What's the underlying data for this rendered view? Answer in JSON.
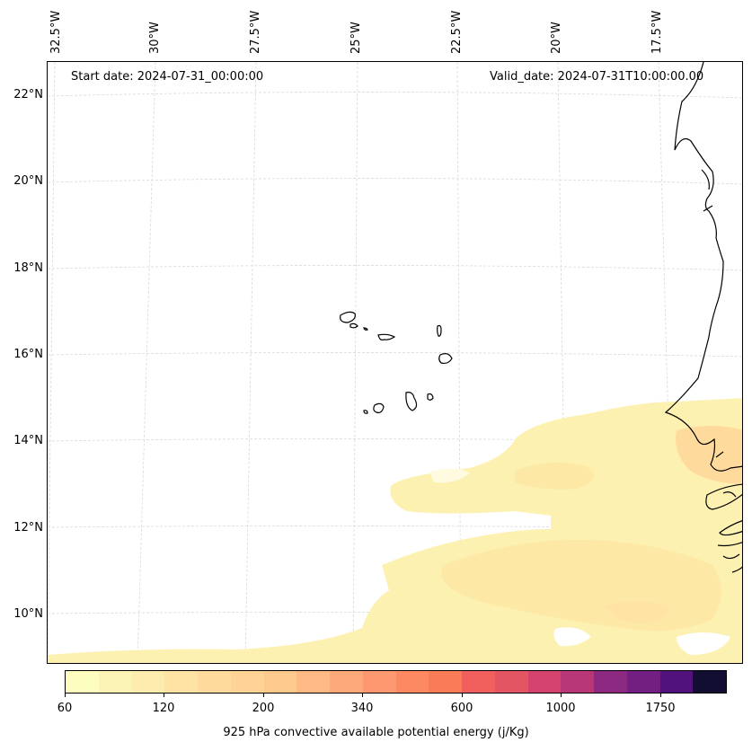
{
  "header": {
    "start_date": "Start date: 2024-07-31_00:00:00",
    "valid_date": "Valid_date: 2024-07-31T10:00:00.00"
  },
  "map": {
    "lat_labels": [
      "22°N",
      "20°N",
      "18°N",
      "16°N",
      "14°N",
      "12°N",
      "10°N"
    ],
    "lon_labels": [
      "32.5°W",
      "30°W",
      "27.5°W",
      "25°W",
      "22.5°W",
      "20°W",
      "17.5°W"
    ],
    "gridlines": true,
    "field": "925 hPa convective available potential energy",
    "coastline_color": "#000000",
    "gridline_color": "#cccccc"
  },
  "colorbar": {
    "label": "925 hPa convective available potential energy (j/Kg)",
    "tick_labels": [
      "60",
      "120",
      "200",
      "340",
      "600",
      "1000",
      "1750"
    ],
    "colors": [
      "#fcfdbf",
      "#fcf4b6",
      "#fdecae",
      "#fee3a5",
      "#fedb9c",
      "#fed395",
      "#fec98d",
      "#feb984",
      "#fea97a",
      "#fd9870",
      "#fc8961",
      "#f97b57",
      "#f1605d",
      "#e45563",
      "#d3436e",
      "#b73779",
      "#8c2981",
      "#721f81",
      "#51127c",
      "#120d32"
    ]
  }
}
